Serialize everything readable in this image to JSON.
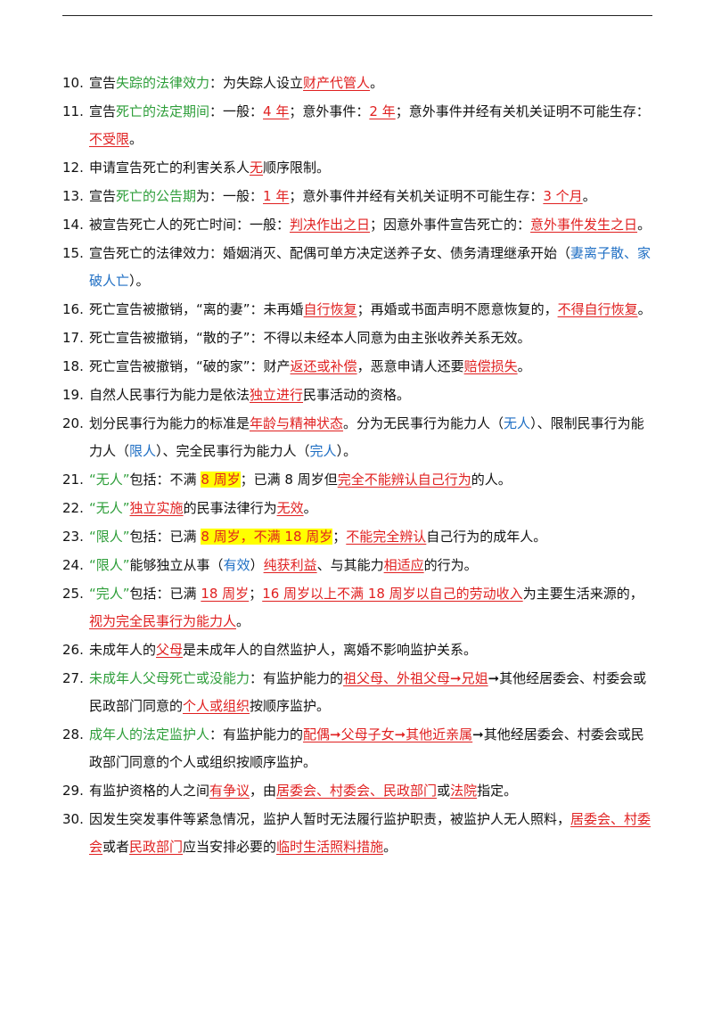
{
  "items": [
    {
      "num": "10.",
      "segs": [
        {
          "t": "宣告"
        },
        {
          "t": "失踪的法律效力",
          "s": "green"
        },
        {
          "t": "：为失踪人设立"
        },
        {
          "t": "财产代管人",
          "s": "red u"
        },
        {
          "t": "。"
        }
      ]
    },
    {
      "num": "11.",
      "segs": [
        {
          "t": "宣告"
        },
        {
          "t": "死亡的法定期间",
          "s": "green"
        },
        {
          "t": "：一般："
        },
        {
          "t": "4 年",
          "s": "red u"
        },
        {
          "t": "；意外事件："
        },
        {
          "t": "2 年",
          "s": "red u"
        },
        {
          "t": "；意外事件并经有关机关证明不可能生存："
        },
        {
          "t": "不受限",
          "s": "red u"
        },
        {
          "t": "。"
        }
      ]
    },
    {
      "num": "12.",
      "segs": [
        {
          "t": "申请宣告死亡的利害关系人"
        },
        {
          "t": "无",
          "s": "red u"
        },
        {
          "t": "顺序限制。"
        }
      ]
    },
    {
      "num": "13.",
      "segs": [
        {
          "t": "宣告"
        },
        {
          "t": "死亡的公告期",
          "s": "green"
        },
        {
          "t": "为：一般："
        },
        {
          "t": "1 年",
          "s": "red u"
        },
        {
          "t": "；意外事件并经有关机关证明不可能生存："
        },
        {
          "t": "3 个月",
          "s": "red u"
        },
        {
          "t": "。"
        }
      ]
    },
    {
      "num": "14.",
      "segs": [
        {
          "t": "被宣告死亡人的死亡时间：一般："
        },
        {
          "t": "判决作出之日",
          "s": "red u"
        },
        {
          "t": "；因意外事件宣告死亡的："
        },
        {
          "t": "意外事件发生之日",
          "s": "red u"
        },
        {
          "t": "。"
        }
      ]
    },
    {
      "num": "15.",
      "segs": [
        {
          "t": "宣告死亡的法律效力：婚姻消灭、配偶可单方决定送养子女、债务清理继承开始（"
        },
        {
          "t": "妻离子散、家破人亡",
          "s": "blue"
        },
        {
          "t": "）。"
        }
      ]
    },
    {
      "num": "16.",
      "segs": [
        {
          "t": "死亡宣告被撤销，“离的妻”：未再婚"
        },
        {
          "t": "自行恢复",
          "s": "red u"
        },
        {
          "t": "；再婚或书面声明不愿意恢复的，"
        },
        {
          "t": "不得自行恢复",
          "s": "red u"
        },
        {
          "t": "。"
        }
      ]
    },
    {
      "num": "17.",
      "segs": [
        {
          "t": "死亡宣告被撤销，“散的子”：不得以未经本人同意为由主张收养关系无效。"
        }
      ]
    },
    {
      "num": "18.",
      "segs": [
        {
          "t": "死亡宣告被撤销，“破的家”：财产"
        },
        {
          "t": "返还或补偿",
          "s": "red u"
        },
        {
          "t": "，恶意申请人还要"
        },
        {
          "t": "赔偿损失",
          "s": "red u"
        },
        {
          "t": "。"
        }
      ]
    },
    {
      "num": "19.",
      "segs": [
        {
          "t": "自然人民事行为能力是依法"
        },
        {
          "t": "独立进行",
          "s": "red u"
        },
        {
          "t": "民事活动的资格。"
        }
      ]
    },
    {
      "num": "20.",
      "segs": [
        {
          "t": "划分民事行为能力的标准是"
        },
        {
          "t": "年龄与精神状态",
          "s": "red u"
        },
        {
          "t": "。分为无民事行为能力人（"
        },
        {
          "t": "无人",
          "s": "blue"
        },
        {
          "t": "）、限制民事行为能力人（"
        },
        {
          "t": "限人",
          "s": "blue"
        },
        {
          "t": "）、完全民事行为能力人（"
        },
        {
          "t": "完人",
          "s": "blue"
        },
        {
          "t": "）。"
        }
      ]
    },
    {
      "num": "21.",
      "segs": [
        {
          "t": "“无人”",
          "s": "green"
        },
        {
          "t": "包括：不满 "
        },
        {
          "t": "8 周岁",
          "s": "red hl"
        },
        {
          "t": "；已满 8 周岁但"
        },
        {
          "t": "完全不能辨认自己行为",
          "s": "red u"
        },
        {
          "t": "的人。"
        }
      ]
    },
    {
      "num": "22.",
      "segs": [
        {
          "t": "“无人”",
          "s": "green"
        },
        {
          "t": "独立实施",
          "s": "red u"
        },
        {
          "t": "的民事法律行为"
        },
        {
          "t": "无效",
          "s": "red u"
        },
        {
          "t": "。"
        }
      ]
    },
    {
      "num": "23.",
      "segs": [
        {
          "t": "“限人”",
          "s": "green"
        },
        {
          "t": "包括：已满 "
        },
        {
          "t": "8 周岁，不满 18 周岁",
          "s": "red hl"
        },
        {
          "t": "；"
        },
        {
          "t": "不能完全辨认",
          "s": "red u"
        },
        {
          "t": "自己行为的成年人。"
        }
      ]
    },
    {
      "num": "24.",
      "segs": [
        {
          "t": "“限人”",
          "s": "green"
        },
        {
          "t": "能够独立从事（"
        },
        {
          "t": "有效",
          "s": "blue"
        },
        {
          "t": "）"
        },
        {
          "t": "纯获利益",
          "s": "red u"
        },
        {
          "t": "、与其能力"
        },
        {
          "t": "相适应",
          "s": "red u"
        },
        {
          "t": "的行为。"
        }
      ]
    },
    {
      "num": "25.",
      "segs": [
        {
          "t": "“完人”",
          "s": "green"
        },
        {
          "t": "包括：已满 "
        },
        {
          "t": "18 周岁",
          "s": "red u"
        },
        {
          "t": "；"
        },
        {
          "t": "16 周岁以上不满 18 周岁以自己的劳动收入",
          "s": "red u"
        },
        {
          "t": "为主要生活来源的，"
        },
        {
          "t": "视为完全民事行为能力人",
          "s": "red u"
        },
        {
          "t": "。"
        }
      ]
    },
    {
      "num": "26.",
      "segs": [
        {
          "t": "未成年人的"
        },
        {
          "t": "父母",
          "s": "red u"
        },
        {
          "t": "是未成年人的自然监护人，离婚不影响监护关系。"
        }
      ]
    },
    {
      "num": "27.",
      "segs": [
        {
          "t": "未成年人父母死亡或没能力",
          "s": "green"
        },
        {
          "t": "：有监护能力的"
        },
        {
          "t": "祖父母、外祖父母➞兄姐",
          "s": "red u"
        },
        {
          "t": "➞其他经居委会、村委会或民政部门同意的"
        },
        {
          "t": "个人或组织",
          "s": "red u"
        },
        {
          "t": "按顺序监护。"
        }
      ]
    },
    {
      "num": "28.",
      "segs": [
        {
          "t": "成年人的法定监护人",
          "s": "green"
        },
        {
          "t": "：有监护能力的"
        },
        {
          "t": "配偶➞父母子女➞其他近亲属",
          "s": "red u"
        },
        {
          "t": "➞其他经居委会、村委会或民政部门同意的个人或组织按顺序监护。"
        }
      ]
    },
    {
      "num": "29.",
      "segs": [
        {
          "t": "有监护资格的人之间"
        },
        {
          "t": "有争议",
          "s": "red u"
        },
        {
          "t": "，由"
        },
        {
          "t": "居委会、村委会、民政部门",
          "s": "red u"
        },
        {
          "t": "或"
        },
        {
          "t": "法院",
          "s": "red u"
        },
        {
          "t": "指定。"
        }
      ]
    },
    {
      "num": "30.",
      "segs": [
        {
          "t": "因发生突发事件等紧急情况，监护人暂时无法履行监护职责，被监护人无人照料，"
        },
        {
          "t": "居委会、村委会",
          "s": "red u"
        },
        {
          "t": "或者"
        },
        {
          "t": "民政部门",
          "s": "red u"
        },
        {
          "t": "应当安排必要的"
        },
        {
          "t": "临时生活照料措施",
          "s": "red u"
        },
        {
          "t": "。"
        }
      ]
    }
  ]
}
